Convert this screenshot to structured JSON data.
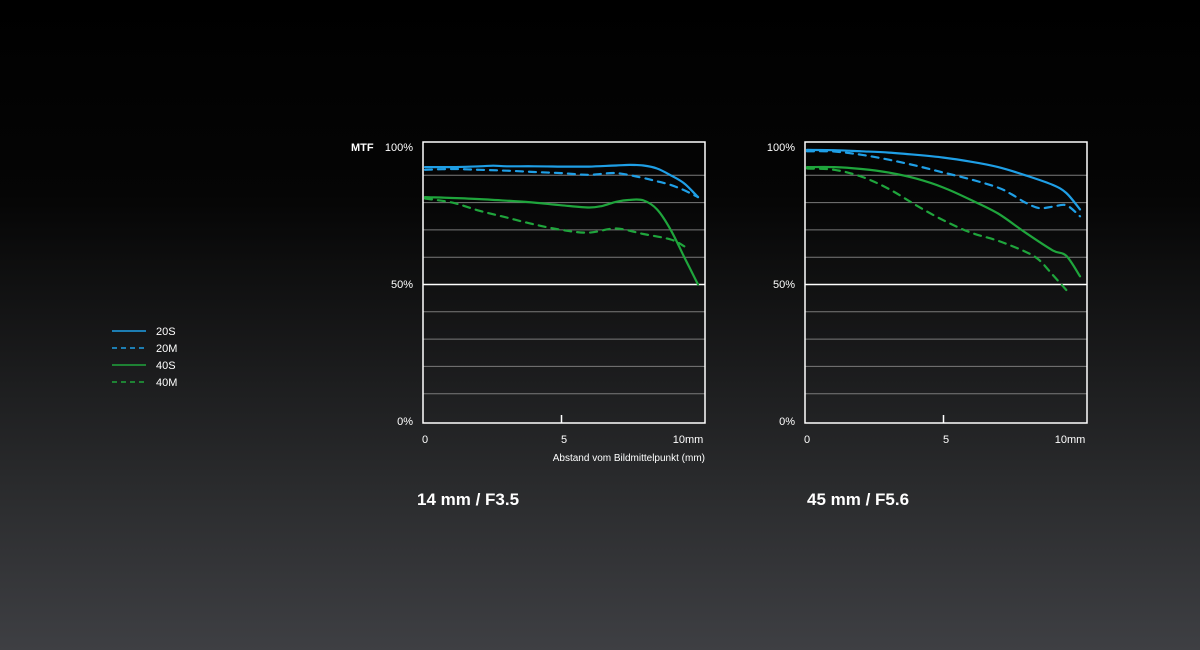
{
  "colors": {
    "sagittal_20": "#1f9fe6",
    "meridional_20": "#1f9fe6",
    "sagittal_40": "#1fa53c",
    "meridional_40": "#1fa53c",
    "frame": "#ffffff",
    "grid": "#7a7a7a",
    "grid_major": "#ffffff",
    "background_top": "#000000",
    "background_bottom": "#3e3f43"
  },
  "legend": [
    {
      "label": "20S",
      "series": "20S",
      "dash": false
    },
    {
      "label": "20M",
      "series": "20M",
      "dash": true
    },
    {
      "label": "40S",
      "series": "40S",
      "dash": false
    },
    {
      "label": "40M",
      "series": "40M",
      "dash": true
    }
  ],
  "chart_data": [
    {
      "type": "line",
      "title": "14 mm / F3.5",
      "ylabel": "MTF",
      "xlabel": "Abstand vom Bildmittelpunkt  (mm)",
      "x_ticks": [
        "0",
        "5",
        "10mm"
      ],
      "y_ticks": [
        "0%",
        "50%",
        "100%"
      ],
      "xlim": [
        0,
        10
      ],
      "ylim": [
        0,
        100
      ],
      "grid": true,
      "series": [
        {
          "name": "20S",
          "dashed": false,
          "color": "#1f9fe6",
          "x": [
            0,
            1,
            2,
            2.5,
            3,
            4,
            5,
            6,
            7,
            7.5,
            8,
            8.5,
            9,
            9.5,
            10
          ],
          "y": [
            93,
            93,
            93.3,
            93.5,
            93.3,
            93.3,
            93.2,
            93.2,
            93.6,
            93.8,
            93.6,
            92.5,
            90,
            87,
            82
          ]
        },
        {
          "name": "20M",
          "dashed": true,
          "color": "#1f9fe6",
          "x": [
            0,
            1,
            2,
            3,
            4,
            5,
            6,
            7,
            8,
            8.5,
            9,
            9.5,
            10
          ],
          "y": [
            92,
            92.3,
            92,
            91.7,
            91.2,
            90.8,
            90.2,
            90.8,
            89,
            87.8,
            86.5,
            84.5,
            82
          ]
        },
        {
          "name": "40S",
          "dashed": false,
          "color": "#1fa53c",
          "x": [
            0,
            1,
            2,
            3,
            4,
            5,
            6,
            6.5,
            7,
            7.5,
            8,
            8.5,
            9,
            9.5,
            10
          ],
          "y": [
            82,
            81.7,
            81.3,
            80.7,
            80,
            79,
            78.2,
            78.8,
            80.3,
            81,
            80.8,
            77.5,
            70,
            60,
            50
          ]
        },
        {
          "name": "40M",
          "dashed": true,
          "color": "#1fa53c",
          "x": [
            0,
            1,
            2,
            3,
            4,
            5,
            6,
            7,
            8,
            9,
            9.5
          ],
          "y": [
            81.5,
            80,
            77,
            74.5,
            72,
            70,
            69,
            70.5,
            68.5,
            66.5,
            64
          ]
        }
      ]
    },
    {
      "type": "line",
      "title": "45 mm / F5.6",
      "ylabel": "",
      "xlabel": "",
      "x_ticks": [
        "0",
        "5",
        "10mm"
      ],
      "y_ticks": [
        "0%",
        "50%",
        "100%"
      ],
      "xlim": [
        0,
        10
      ],
      "ylim": [
        0,
        100
      ],
      "grid": true,
      "series": [
        {
          "name": "20S",
          "dashed": false,
          "color": "#1f9fe6",
          "x": [
            0,
            1,
            2,
            3,
            4,
            5,
            6,
            7,
            8,
            9,
            9.5,
            10
          ],
          "y": [
            99.3,
            99.2,
            98.8,
            98.3,
            97.5,
            96.5,
            95,
            93,
            90,
            86.5,
            83.5,
            77.5
          ]
        },
        {
          "name": "20M",
          "dashed": true,
          "color": "#1f9fe6",
          "x": [
            0,
            1,
            2,
            3,
            4,
            5,
            6,
            7,
            7.5,
            8,
            8.5,
            9,
            9.5,
            10
          ],
          "y": [
            98.8,
            98.7,
            97.5,
            95.7,
            93.5,
            91,
            88.5,
            85.5,
            83,
            80,
            78,
            78.5,
            79,
            75
          ]
        },
        {
          "name": "40S",
          "dashed": false,
          "color": "#1fa53c",
          "x": [
            0,
            1,
            2,
            3,
            4,
            5,
            6,
            7,
            8,
            9,
            9.5,
            10
          ],
          "y": [
            93,
            93,
            92.3,
            91,
            88.8,
            85.5,
            81,
            76,
            69,
            62.5,
            60.5,
            53
          ]
        },
        {
          "name": "40M",
          "dashed": true,
          "color": "#1fa53c",
          "x": [
            0,
            1,
            2,
            3,
            4,
            5,
            6,
            7,
            8,
            8.5,
            9,
            9.5
          ],
          "y": [
            92.5,
            92,
            89.5,
            85,
            79,
            73.5,
            69,
            66,
            62,
            59,
            53.5,
            48
          ]
        }
      ]
    }
  ]
}
